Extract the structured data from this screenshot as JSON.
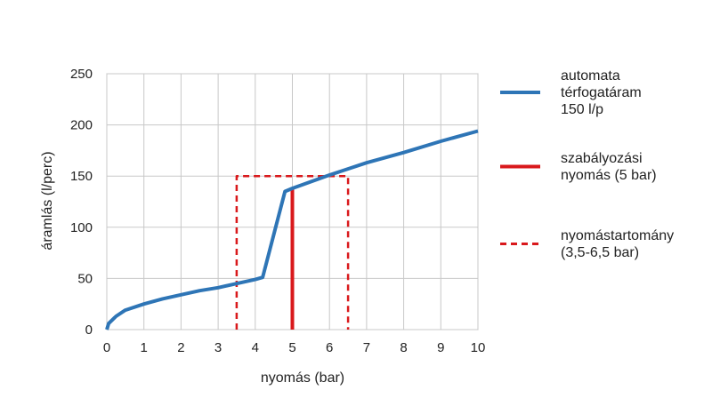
{
  "chart_data": {
    "type": "line",
    "xlabel": "nyomás (bar)",
    "ylabel": "áramlás (l/perc)",
    "xlim": [
      0,
      10
    ],
    "ylim": [
      0,
      250
    ],
    "x_ticks": [
      "0",
      "1",
      "2",
      "3",
      "4",
      "5",
      "6",
      "7",
      "8",
      "9",
      "10"
    ],
    "y_ticks": [
      "0",
      "50",
      "100",
      "150",
      "200",
      "250"
    ],
    "grid": true,
    "legend_position": "right",
    "series": [
      {
        "name": "automata térfogatáram 150 l/p",
        "name_lines": [
          "automata",
          "térfogatáram",
          "150 l/p"
        ],
        "style": "solid",
        "color": "#2e75b6",
        "points": [
          [
            0,
            0
          ],
          [
            0.05,
            6
          ],
          [
            0.25,
            13
          ],
          [
            0.5,
            19
          ],
          [
            1,
            25
          ],
          [
            1.5,
            30
          ],
          [
            2,
            34
          ],
          [
            2.5,
            38
          ],
          [
            3,
            41
          ],
          [
            3.5,
            45
          ],
          [
            4,
            49
          ],
          [
            4.2,
            51
          ],
          [
            4.8,
            135
          ],
          [
            5,
            138
          ],
          [
            6,
            151
          ],
          [
            7,
            163
          ],
          [
            8,
            173
          ],
          [
            9,
            184
          ],
          [
            10,
            194
          ]
        ]
      },
      {
        "name": "szabályozási nyomás (5 bar)",
        "name_lines": [
          "szabályozási",
          "nyomás (5 bar)"
        ],
        "style": "solid",
        "color": "#d9191c",
        "points": [
          [
            5,
            0
          ],
          [
            5,
            138
          ]
        ]
      },
      {
        "name": "nyomástartomány (3,5-6,5 bar)",
        "name_lines": [
          "nyomástartomány",
          "(3,5-6,5 bar)"
        ],
        "style": "dashed",
        "color": "#d9191c",
        "points": [
          [
            3.5,
            0
          ],
          [
            3.5,
            150
          ],
          [
            6.5,
            150
          ],
          [
            6.5,
            0
          ]
        ]
      }
    ]
  }
}
